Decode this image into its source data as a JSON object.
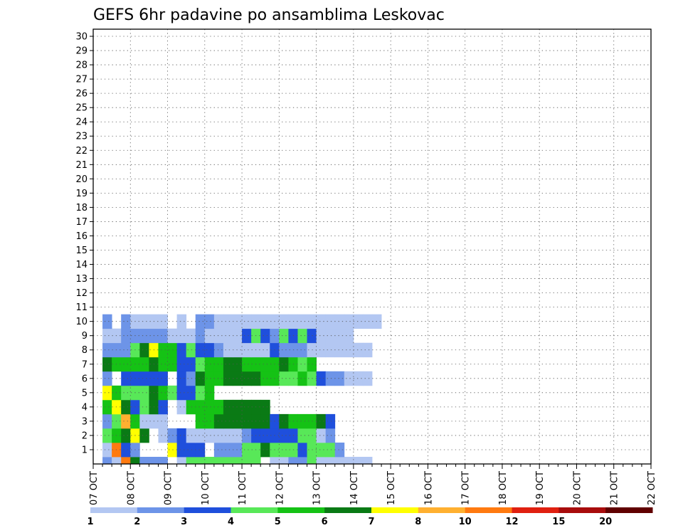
{
  "chart_data": {
    "type": "heatmap",
    "title": "GEFS 6hr padavine po ansamblima Leskovac",
    "xlabel": "",
    "ylabel": "",
    "grid": true,
    "x_tick_labels": [
      "07 OCT",
      "08 OCT",
      "09 OCT",
      "10 OCT",
      "11 OCT",
      "12 OCT",
      "13 OCT",
      "14 OCT",
      "15 OCT",
      "16 OCT",
      "17 OCT",
      "18 OCT",
      "19 OCT",
      "20 OCT",
      "21 OCT",
      "22 OCT"
    ],
    "y_tick_labels": [
      "1",
      "2",
      "3",
      "4",
      "5",
      "6",
      "7",
      "8",
      "9",
      "10",
      "11",
      "12",
      "13",
      "14",
      "15",
      "16",
      "17",
      "18",
      "19",
      "20",
      "21",
      "22",
      "23",
      "24",
      "25",
      "26",
      "27",
      "28",
      "29",
      "30"
    ],
    "time_steps_per_day": 4,
    "members": 31,
    "colorbar": {
      "labels": [
        "1",
        "2",
        "3",
        "4",
        "5",
        "6",
        "7",
        "8",
        "10",
        "12",
        "15",
        "20"
      ],
      "colors": [
        "#b3c7f2",
        "#6d94e8",
        "#1f4fdc",
        "#58e858",
        "#15c215",
        "#0a7a15",
        "#ffff00",
        "#ffb030",
        "#ff7a10",
        "#e02010",
        "#a80c0c",
        "#600000"
      ]
    },
    "cells": [
      [
        0,
        1,
        1
      ],
      [
        0,
        2,
        0
      ],
      [
        0,
        3,
        8
      ],
      [
        0,
        4,
        5
      ],
      [
        0,
        5,
        1
      ],
      [
        0,
        6,
        1
      ],
      [
        0,
        7,
        1
      ],
      [
        0,
        9,
        0
      ],
      [
        0,
        10,
        3
      ],
      [
        0,
        11,
        3
      ],
      [
        0,
        12,
        3
      ],
      [
        0,
        13,
        3
      ],
      [
        0,
        14,
        3
      ],
      [
        0,
        15,
        3
      ],
      [
        0,
        16,
        3
      ],
      [
        0,
        17,
        3
      ],
      [
        0,
        19,
        0
      ],
      [
        0,
        20,
        0
      ],
      [
        0,
        21,
        1
      ],
      [
        0,
        22,
        1
      ],
      [
        0,
        23,
        3
      ],
      [
        0,
        24,
        0
      ],
      [
        0,
        25,
        0
      ],
      [
        0,
        26,
        0
      ],
      [
        0,
        27,
        0
      ],
      [
        0,
        28,
        0
      ],
      [
        0,
        29,
        0
      ],
      [
        1,
        1,
        0
      ],
      [
        1,
        2,
        8
      ],
      [
        1,
        3,
        2
      ],
      [
        1,
        4,
        1
      ],
      [
        1,
        8,
        6
      ],
      [
        1,
        9,
        2
      ],
      [
        1,
        10,
        2
      ],
      [
        1,
        11,
        2
      ],
      [
        1,
        13,
        1
      ],
      [
        1,
        14,
        1
      ],
      [
        1,
        15,
        1
      ],
      [
        1,
        16,
        3
      ],
      [
        1,
        17,
        3
      ],
      [
        1,
        18,
        5
      ],
      [
        1,
        19,
        3
      ],
      [
        1,
        20,
        3
      ],
      [
        1,
        21,
        3
      ],
      [
        1,
        22,
        2
      ],
      [
        1,
        23,
        3
      ],
      [
        1,
        24,
        3
      ],
      [
        1,
        25,
        3
      ],
      [
        1,
        26,
        1
      ],
      [
        2,
        1,
        3
      ],
      [
        2,
        2,
        4
      ],
      [
        2,
        3,
        5
      ],
      [
        2,
        4,
        6
      ],
      [
        2,
        5,
        5
      ],
      [
        2,
        7,
        0
      ],
      [
        2,
        8,
        1
      ],
      [
        2,
        9,
        2
      ],
      [
        2,
        10,
        0
      ],
      [
        2,
        11,
        0
      ],
      [
        2,
        12,
        0
      ],
      [
        2,
        13,
        0
      ],
      [
        2,
        14,
        0
      ],
      [
        2,
        15,
        0
      ],
      [
        2,
        16,
        1
      ],
      [
        2,
        17,
        2
      ],
      [
        2,
        18,
        2
      ],
      [
        2,
        19,
        2
      ],
      [
        2,
        20,
        2
      ],
      [
        2,
        21,
        2
      ],
      [
        2,
        22,
        3
      ],
      [
        2,
        23,
        3
      ],
      [
        2,
        24,
        0
      ],
      [
        2,
        25,
        1
      ],
      [
        3,
        1,
        1
      ],
      [
        3,
        2,
        3
      ],
      [
        3,
        3,
        7
      ],
      [
        3,
        4,
        4
      ],
      [
        3,
        5,
        0
      ],
      [
        3,
        6,
        0
      ],
      [
        3,
        7,
        0
      ],
      [
        3,
        11,
        4
      ],
      [
        3,
        12,
        4
      ],
      [
        3,
        13,
        5
      ],
      [
        3,
        14,
        5
      ],
      [
        3,
        15,
        5
      ],
      [
        3,
        16,
        5
      ],
      [
        3,
        17,
        5
      ],
      [
        3,
        18,
        5
      ],
      [
        3,
        19,
        2
      ],
      [
        3,
        20,
        5
      ],
      [
        3,
        21,
        4
      ],
      [
        3,
        22,
        4
      ],
      [
        3,
        23,
        4
      ],
      [
        3,
        24,
        5
      ],
      [
        3,
        25,
        2
      ],
      [
        4,
        1,
        4
      ],
      [
        4,
        2,
        6
      ],
      [
        4,
        3,
        5
      ],
      [
        4,
        4,
        2
      ],
      [
        4,
        5,
        3
      ],
      [
        4,
        6,
        5
      ],
      [
        4,
        7,
        2
      ],
      [
        4,
        9,
        0
      ],
      [
        4,
        10,
        4
      ],
      [
        4,
        11,
        4
      ],
      [
        4,
        12,
        4
      ],
      [
        4,
        13,
        4
      ],
      [
        4,
        14,
        5
      ],
      [
        4,
        15,
        5
      ],
      [
        4,
        16,
        5
      ],
      [
        4,
        17,
        5
      ],
      [
        4,
        18,
        5
      ],
      [
        5,
        1,
        6
      ],
      [
        5,
        2,
        4
      ],
      [
        5,
        3,
        3
      ],
      [
        5,
        4,
        3
      ],
      [
        5,
        5,
        3
      ],
      [
        5,
        6,
        5
      ],
      [
        5,
        7,
        4
      ],
      [
        5,
        8,
        3
      ],
      [
        5,
        9,
        2
      ],
      [
        5,
        10,
        2
      ],
      [
        5,
        11,
        3
      ],
      [
        5,
        12,
        4
      ],
      [
        6,
        1,
        1
      ],
      [
        6,
        3,
        2
      ],
      [
        6,
        4,
        2
      ],
      [
        6,
        5,
        2
      ],
      [
        6,
        6,
        2
      ],
      [
        6,
        7,
        2
      ],
      [
        6,
        9,
        2
      ],
      [
        6,
        10,
        1
      ],
      [
        6,
        11,
        5
      ],
      [
        6,
        12,
        4
      ],
      [
        6,
        13,
        4
      ],
      [
        6,
        14,
        5
      ],
      [
        6,
        15,
        5
      ],
      [
        6,
        16,
        5
      ],
      [
        6,
        17,
        5
      ],
      [
        6,
        18,
        4
      ],
      [
        6,
        19,
        4
      ],
      [
        6,
        20,
        3
      ],
      [
        6,
        21,
        3
      ],
      [
        6,
        22,
        4
      ],
      [
        6,
        23,
        3
      ],
      [
        6,
        24,
        2
      ],
      [
        6,
        25,
        1
      ],
      [
        6,
        26,
        1
      ],
      [
        6,
        27,
        0
      ],
      [
        6,
        28,
        0
      ],
      [
        6,
        29,
        0
      ],
      [
        7,
        1,
        5
      ],
      [
        7,
        2,
        4
      ],
      [
        7,
        3,
        4
      ],
      [
        7,
        4,
        4
      ],
      [
        7,
        5,
        4
      ],
      [
        7,
        6,
        5
      ],
      [
        7,
        7,
        4
      ],
      [
        7,
        8,
        4
      ],
      [
        7,
        9,
        2
      ],
      [
        7,
        10,
        2
      ],
      [
        7,
        11,
        3
      ],
      [
        7,
        12,
        4
      ],
      [
        7,
        13,
        4
      ],
      [
        7,
        14,
        5
      ],
      [
        7,
        15,
        5
      ],
      [
        7,
        16,
        4
      ],
      [
        7,
        17,
        4
      ],
      [
        7,
        18,
        4
      ],
      [
        7,
        19,
        4
      ],
      [
        7,
        20,
        5
      ],
      [
        7,
        21,
        4
      ],
      [
        7,
        22,
        3
      ],
      [
        7,
        23,
        4
      ],
      [
        8,
        1,
        1
      ],
      [
        8,
        2,
        1
      ],
      [
        8,
        3,
        1
      ],
      [
        8,
        4,
        3
      ],
      [
        8,
        5,
        5
      ],
      [
        8,
        6,
        6
      ],
      [
        8,
        7,
        4
      ],
      [
        8,
        8,
        4
      ],
      [
        8,
        9,
        2
      ],
      [
        8,
        10,
        3
      ],
      [
        8,
        11,
        2
      ],
      [
        8,
        12,
        2
      ],
      [
        8,
        13,
        1
      ],
      [
        8,
        14,
        0
      ],
      [
        8,
        15,
        0
      ],
      [
        8,
        16,
        0
      ],
      [
        8,
        17,
        0
      ],
      [
        8,
        18,
        0
      ],
      [
        8,
        19,
        2
      ],
      [
        8,
        20,
        1
      ],
      [
        8,
        21,
        1
      ],
      [
        8,
        22,
        1
      ],
      [
        8,
        23,
        0
      ],
      [
        8,
        24,
        0
      ],
      [
        8,
        25,
        0
      ],
      [
        8,
        26,
        0
      ],
      [
        8,
        27,
        0
      ],
      [
        8,
        28,
        0
      ],
      [
        8,
        29,
        0
      ],
      [
        9,
        1,
        0
      ],
      [
        9,
        2,
        0
      ],
      [
        9,
        3,
        1
      ],
      [
        9,
        4,
        1
      ],
      [
        9,
        5,
        1
      ],
      [
        9,
        6,
        1
      ],
      [
        9,
        7,
        1
      ],
      [
        9,
        8,
        0
      ],
      [
        9,
        9,
        0
      ],
      [
        9,
        10,
        0
      ],
      [
        9,
        11,
        1
      ],
      [
        9,
        12,
        0
      ],
      [
        9,
        13,
        0
      ],
      [
        9,
        14,
        0
      ],
      [
        9,
        15,
        0
      ],
      [
        9,
        16,
        2
      ],
      [
        9,
        17,
        3
      ],
      [
        9,
        18,
        2
      ],
      [
        9,
        19,
        1
      ],
      [
        9,
        20,
        3
      ],
      [
        9,
        21,
        2
      ],
      [
        9,
        22,
        3
      ],
      [
        9,
        23,
        2
      ],
      [
        9,
        24,
        0
      ],
      [
        9,
        25,
        0
      ],
      [
        9,
        26,
        0
      ],
      [
        9,
        27,
        0
      ],
      [
        10,
        1,
        1
      ],
      [
        10,
        3,
        1
      ],
      [
        10,
        4,
        0
      ],
      [
        10,
        5,
        0
      ],
      [
        10,
        6,
        0
      ],
      [
        10,
        7,
        0
      ],
      [
        10,
        9,
        0
      ],
      [
        10,
        11,
        1
      ],
      [
        10,
        12,
        1
      ],
      [
        10,
        13,
        0
      ],
      [
        10,
        14,
        0
      ],
      [
        10,
        15,
        0
      ],
      [
        10,
        16,
        0
      ],
      [
        10,
        17,
        0
      ],
      [
        10,
        18,
        0
      ],
      [
        10,
        19,
        0
      ],
      [
        10,
        20,
        0
      ],
      [
        10,
        21,
        0
      ],
      [
        10,
        22,
        0
      ],
      [
        10,
        23,
        0
      ],
      [
        10,
        24,
        0
      ],
      [
        10,
        25,
        0
      ],
      [
        10,
        26,
        0
      ],
      [
        10,
        27,
        0
      ],
      [
        10,
        28,
        0
      ],
      [
        10,
        29,
        0
      ],
      [
        10,
        30,
        0
      ]
    ]
  }
}
